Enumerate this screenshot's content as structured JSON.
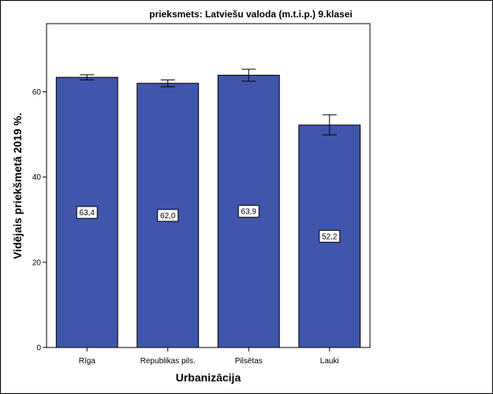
{
  "chart_data": {
    "type": "bar",
    "title": "prieksmets: Latviešu valoda (m.t.i.p.) 9.klasei",
    "xlabel": "Urbanizācija",
    "ylabel": "Vidējais priekšmetā 2019 %.",
    "categories": [
      "Rīga",
      "Republikas pils.",
      "Pilsētas",
      "Lauki"
    ],
    "values": [
      63.4,
      62.0,
      63.9,
      52.2
    ],
    "value_labels": [
      "63,4",
      "62,0",
      "63,9",
      "52,2"
    ],
    "error_low": [
      62.8,
      61.2,
      62.5,
      49.9
    ],
    "error_high": [
      64.0,
      62.8,
      65.3,
      54.6
    ],
    "ylim": [
      0,
      76
    ],
    "yticks": [
      0,
      20,
      40,
      60
    ],
    "ytick_labels": [
      "0",
      "20",
      "40",
      "60"
    ],
    "grid": false,
    "colors": {
      "bar": "#3F56AC",
      "outline": "#000000",
      "background": "#ffffff"
    }
  }
}
